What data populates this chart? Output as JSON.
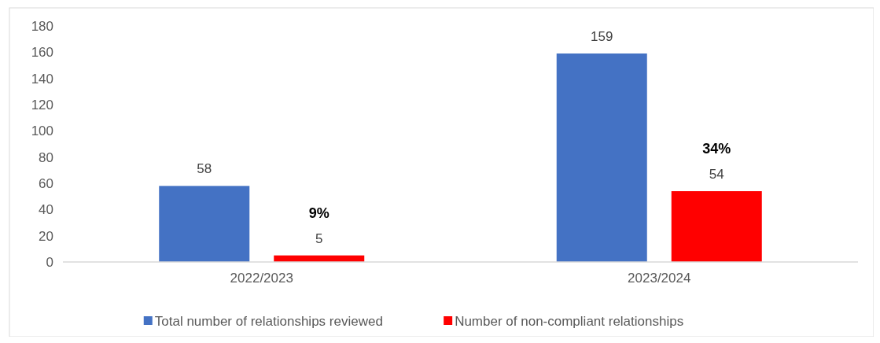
{
  "chart_data": {
    "type": "bar",
    "categories": [
      "2022/2023",
      "2023/2024"
    ],
    "series": [
      {
        "name": "Total number of relationships reviewed",
        "color": "#4472c4",
        "values": [
          58,
          159
        ]
      },
      {
        "name": "Number of non-compliant relationships",
        "color": "#ff0000",
        "values": [
          5,
          54
        ]
      }
    ],
    "ylim": [
      0,
      180
    ],
    "yticks": [
      0,
      20,
      40,
      60,
      80,
      100,
      120,
      140,
      160,
      180
    ],
    "grid": false,
    "legend": "bottom",
    "data_labels": true,
    "annotations": [
      "9%",
      "34%"
    ]
  }
}
